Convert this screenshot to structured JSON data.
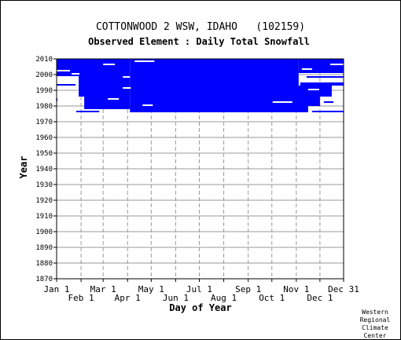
{
  "chart_data": {
    "type": "heatmap",
    "title": "COTTONWOOD 2 WSW, IDAHO   (102159)",
    "subtitle": "Observed Element : Daily Total Snowfall",
    "xlabel": "Day of Year",
    "ylabel": "Year",
    "x_range": [
      1,
      365
    ],
    "ylim": [
      1870,
      2010
    ],
    "y_ticks": [
      1870,
      1880,
      1890,
      1900,
      1910,
      1920,
      1930,
      1940,
      1950,
      1960,
      1970,
      1980,
      1990,
      2000,
      2010
    ],
    "x_tick_labels": [
      {
        "label": "Jan 1",
        "day": 1,
        "row": 0
      },
      {
        "label": "Feb 1",
        "day": 32,
        "row": 1
      },
      {
        "label": "Mar 1",
        "day": 60,
        "row": 0
      },
      {
        "label": "Apr 1",
        "day": 91,
        "row": 1
      },
      {
        "label": "May 1",
        "day": 121,
        "row": 0
      },
      {
        "label": "Jun 1",
        "day": 152,
        "row": 1
      },
      {
        "label": "Jul 1",
        "day": 182,
        "row": 0
      },
      {
        "label": "Aug 1",
        "day": 213,
        "row": 1
      },
      {
        "label": "Sep 1",
        "day": 244,
        "row": 0
      },
      {
        "label": "Oct 1",
        "day": 274,
        "row": 1
      },
      {
        "label": "Nov 1",
        "day": 305,
        "row": 0
      },
      {
        "label": "Dec 1",
        "day": 335,
        "row": 1
      },
      {
        "label": "Dec 31",
        "day": 365,
        "row": 0
      }
    ],
    "grid": true,
    "fill_color": "#0000ff",
    "records": [
      {
        "x0": 94,
        "x1": 308,
        "y0": 1976,
        "y1": 2010
      },
      {
        "x0": 1,
        "x1": 94,
        "y0": 1999,
        "y1": 2010
      },
      {
        "x0": 308,
        "x1": 365,
        "y0": 2001,
        "y1": 2010
      },
      {
        "x0": 29,
        "x1": 94,
        "y0": 1986,
        "y1": 1999
      },
      {
        "x0": 36,
        "x1": 94,
        "y0": 1978,
        "y1": 1986
      },
      {
        "x0": 270,
        "x1": 320,
        "y0": 1976,
        "y1": 1980
      },
      {
        "x0": 270,
        "x1": 335,
        "y0": 1980,
        "y1": 1986
      },
      {
        "x0": 305,
        "x1": 350,
        "y0": 1986,
        "y1": 1993
      },
      {
        "x0": 310,
        "x1": 365,
        "y0": 1993,
        "y1": 1995
      },
      {
        "x0": 318,
        "x1": 365,
        "y0": 1998,
        "y1": 1999
      },
      {
        "x0": 1,
        "x1": 25,
        "y0": 1993,
        "y1": 1994
      },
      {
        "x0": 1,
        "x1": 10,
        "y0": 2004,
        "y1": 2005
      },
      {
        "x0": 26,
        "x1": 55,
        "y0": 1976,
        "y1": 1977
      },
      {
        "x0": 1,
        "x1": 2,
        "y0": 1983,
        "y1": 1985
      },
      {
        "x0": 325,
        "x1": 365,
        "y0": 1976,
        "y1": 1977
      },
      {
        "x0": 340,
        "x1": 352,
        "y0": 1982,
        "y1": 1983
      }
    ],
    "gaps": [
      {
        "x0": 1,
        "x1": 18,
        "y0": 2002,
        "y1": 2003
      },
      {
        "x0": 20,
        "x1": 30,
        "y0": 2000,
        "y1": 2001
      },
      {
        "x0": 60,
        "x1": 75,
        "y0": 2006,
        "y1": 2007
      },
      {
        "x0": 100,
        "x1": 125,
        "y0": 2008,
        "y1": 2009
      },
      {
        "x0": 66,
        "x1": 80,
        "y0": 1984,
        "y1": 1985
      },
      {
        "x0": 110,
        "x1": 123,
        "y0": 1980,
        "y1": 1981
      },
      {
        "x0": 85,
        "x1": 95,
        "y0": 1991,
        "y1": 1992
      },
      {
        "x0": 312,
        "x1": 325,
        "y0": 2003,
        "y1": 2004
      },
      {
        "x0": 320,
        "x1": 334,
        "y0": 1990,
        "y1": 1991
      },
      {
        "x0": 275,
        "x1": 300,
        "y0": 1982,
        "y1": 1983
      },
      {
        "x0": 85,
        "x1": 94,
        "y0": 1998,
        "y1": 1999
      },
      {
        "x0": 348,
        "x1": 365,
        "y0": 2006,
        "y1": 2007
      },
      {
        "x0": 336,
        "x1": 352,
        "y0": 1996,
        "y1": 1997
      }
    ]
  },
  "credit": {
    "line1": "Western",
    "line2": "Regional",
    "line3": "Climate",
    "line4": "Center"
  }
}
